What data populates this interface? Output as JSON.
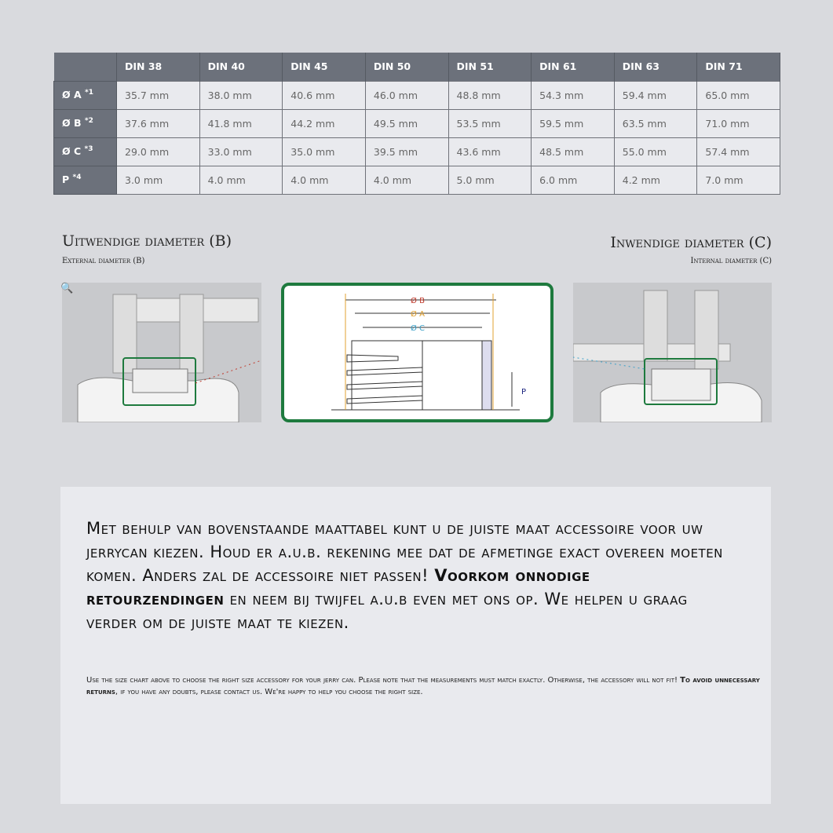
{
  "table": {
    "headers": [
      "",
      "DIN 38",
      "DIN 40",
      "DIN 45",
      "DIN 50",
      "DIN 51",
      "DIN 61",
      "DIN 63",
      "DIN 71"
    ],
    "rows": [
      {
        "label": "Ø A",
        "note": "*1",
        "values": [
          "35.7 mm",
          "38.0 mm",
          "40.6 mm",
          "46.0 mm",
          "48.8 mm",
          "54.3 mm",
          "59.4 mm",
          "65.0 mm"
        ]
      },
      {
        "label": "Ø B",
        "note": "*2",
        "values": [
          "37.6 mm",
          "41.8 mm",
          "44.2 mm",
          "49.5 mm",
          "53.5 mm",
          "59.5 mm",
          "63.5 mm",
          "71.0 mm"
        ]
      },
      {
        "label": "Ø C",
        "note": "*3",
        "values": [
          "29.0 mm",
          "33.0 mm",
          "35.0 mm",
          "39.5 mm",
          "43.6 mm",
          "48.5 mm",
          "55.0 mm",
          "57.4 mm"
        ]
      },
      {
        "label": "P",
        "note": "*4",
        "values": [
          "3.0 mm",
          "4.0 mm",
          "4.0 mm",
          "4.0 mm",
          "5.0 mm",
          "6.0 mm",
          "4.2 mm",
          "7.0 mm"
        ]
      }
    ]
  },
  "external": {
    "title": "Uitwendige diameter (B)",
    "subtitle": "External diameter (B)"
  },
  "internal": {
    "title": "Inwendige diameter (C)",
    "subtitle": "Internal diameter (C)"
  },
  "diagram": {
    "b": "Ø B",
    "a": "Ø A",
    "c": "Ø C",
    "p": "P",
    "colors": {
      "b": "#c0392b",
      "a": "#e0a030",
      "c": "#3aa0c8",
      "p": "#1a237e",
      "frame": "#1e7a3e"
    }
  },
  "info": {
    "nl_before": "Met behulp van bovenstaande maattabel kunt u de juiste maat accessoire voor uw jerrycan kiezen. Houd er a.u.b. rekening mee dat de afmetinge exact overeen moeten komen. Anders zal de accessoire niet passen! ",
    "nl_bold": "Voorkom onnodige retourzendingen",
    "nl_after": " en neem bij twijfel a.u.b even met ons op. We helpen u graag verder om de juiste maat te kiezen.",
    "en_before": "Use the size chart above to choose the right size accessory for your jerry can. Please note that the measurements must match exactly. Otherwise, the accessory will not fit! ",
    "en_bold": "To avoid unnecessary returns",
    "en_after": ", if you have any doubts, please contact us. We're happy to help you choose the right size."
  }
}
